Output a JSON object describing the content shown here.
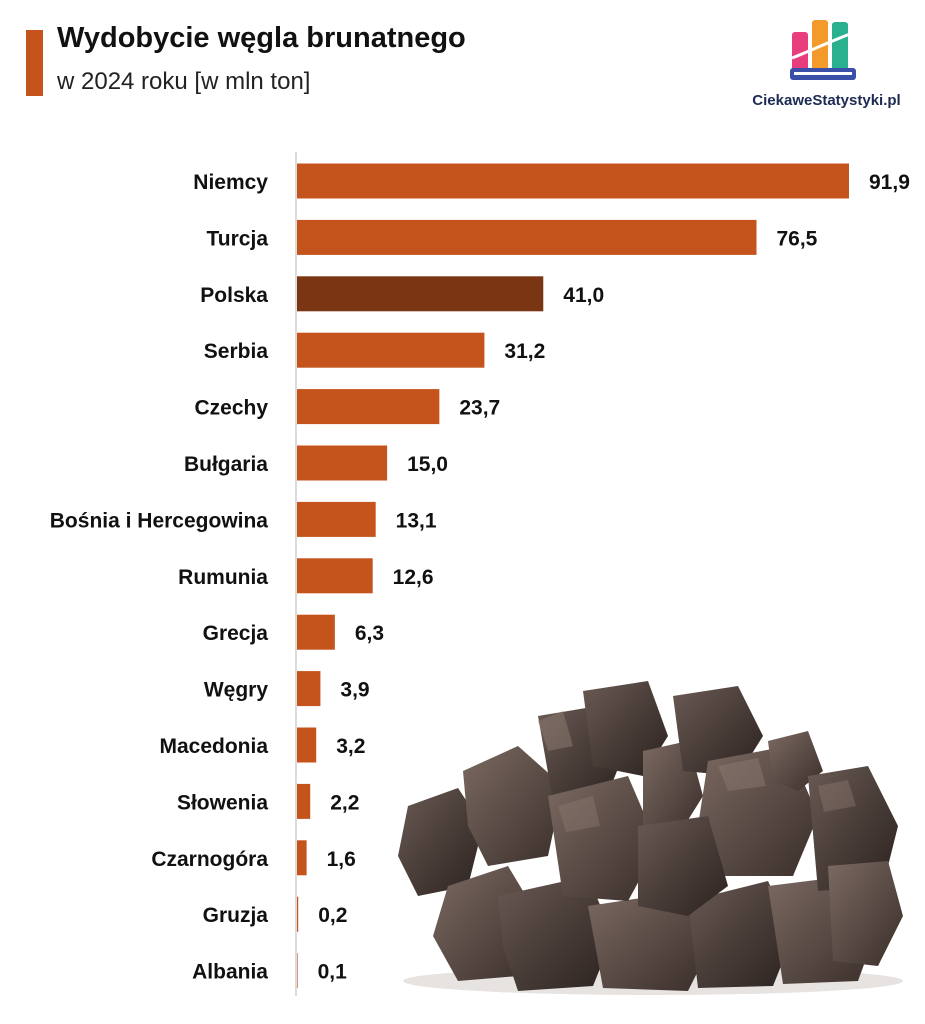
{
  "title": "Wydobycie węgla brunatnego",
  "subtitle": "w 2024 roku [w mln ton]",
  "brand": "CiekaweStatystyki.pl",
  "colors": {
    "bar": "#C4531C",
    "highlight": "#7A3512",
    "accent": "#C4531C"
  },
  "chart_data": {
    "type": "bar",
    "orientation": "horizontal",
    "categories": [
      "Niemcy",
      "Turcja",
      "Polska",
      "Serbia",
      "Czechy",
      "Bułgaria",
      "Bośnia i Hercegowina",
      "Rumunia",
      "Grecja",
      "Węgry",
      "Macedonia",
      "Słowenia",
      "Czarnogóra",
      "Gruzja",
      "Albania"
    ],
    "values": [
      91.9,
      76.5,
      41.0,
      31.2,
      23.7,
      15.0,
      13.1,
      12.6,
      6.3,
      3.9,
      3.2,
      2.2,
      1.6,
      0.2,
      0.1
    ],
    "value_labels": [
      "91,9",
      "76,5",
      "41,0",
      "31,2",
      "23,7",
      "15,0",
      "13,1",
      "12,6",
      "6,3",
      "3,9",
      "3,2",
      "2,2",
      "1,6",
      "0,2",
      "0,1"
    ],
    "highlight": "Polska",
    "xlim": [
      0,
      92
    ],
    "grid": false,
    "legend": "none"
  }
}
